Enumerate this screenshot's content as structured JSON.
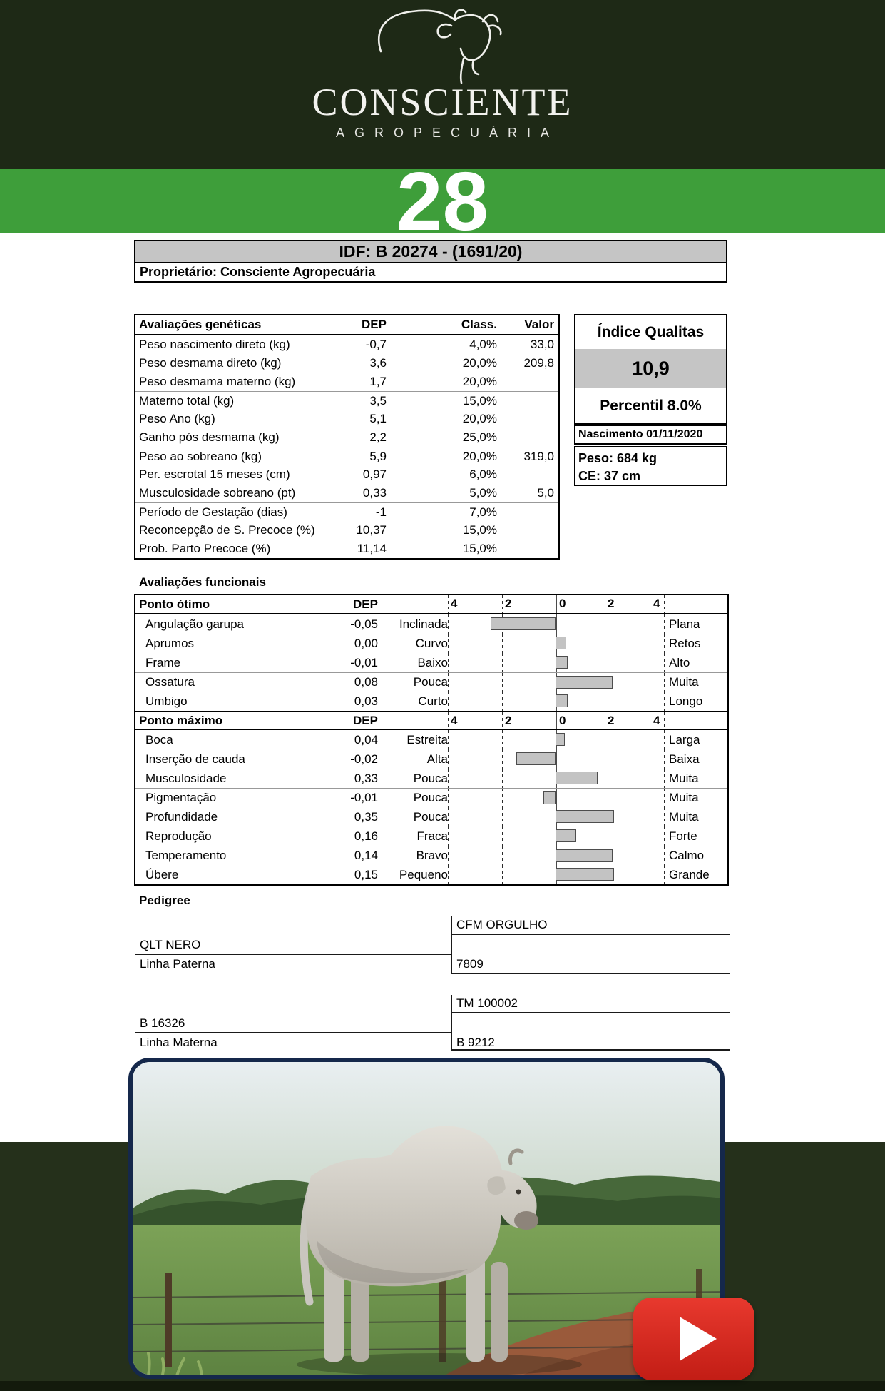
{
  "header": {
    "brand": "CONSCIENTE",
    "brand_subtitle": "AGROPECUÁRIA",
    "lot_number": "28"
  },
  "idf": {
    "title": "IDF: B 20274 - (1691/20)",
    "owner": "Proprietário: Consciente Agropecuária"
  },
  "genetic": {
    "headers": {
      "name": "Avaliações genéticas",
      "dep": "DEP",
      "class": "Class.",
      "valor": "Valor"
    },
    "rows": [
      {
        "name": "Peso nascimento direto (kg)",
        "dep": "-0,7",
        "class": "4,0%",
        "valor": "33,0"
      },
      {
        "name": "Peso desmama direto (kg)",
        "dep": "3,6",
        "class": "20,0%",
        "valor": "209,8"
      },
      {
        "name": "Peso desmama materno (kg)",
        "dep": "1,7",
        "class": "20,0%",
        "valor": ""
      },
      {
        "name": "Materno total (kg)",
        "dep": "3,5",
        "class": "15,0%",
        "valor": ""
      },
      {
        "name": "Peso Ano (kg)",
        "dep": "5,1",
        "class": "20,0%",
        "valor": ""
      },
      {
        "name": "Ganho pós desmama (kg)",
        "dep": "2,2",
        "class": "25,0%",
        "valor": ""
      },
      {
        "name": "Peso ao sobreano (kg)",
        "dep": "5,9",
        "class": "20,0%",
        "valor": "319,0"
      },
      {
        "name": "Per. escrotal 15 meses (cm)",
        "dep": "0,97",
        "class": "6,0%",
        "valor": ""
      },
      {
        "name": "Musculosidade sobreano (pt)",
        "dep": "0,33",
        "class": "5,0%",
        "valor": "5,0"
      },
      {
        "name": "Período de Gestação (dias)",
        "dep": "-1",
        "class": "7,0%",
        "valor": ""
      },
      {
        "name": "Reconcepção de S. Precoce (%)",
        "dep": "10,37",
        "class": "15,0%",
        "valor": ""
      },
      {
        "name": "Prob. Parto Precoce (%)",
        "dep": "11,14",
        "class": "15,0%",
        "valor": ""
      }
    ]
  },
  "qualitas": {
    "title": "Índice Qualitas",
    "value": "10,9",
    "percentile": "Percentil 8.0%",
    "birth": "Nascimento 01/11/2020",
    "weight": "Peso: 684 kg",
    "scrotal": "CE: 37 cm"
  },
  "functional": {
    "title": "Avaliações funcionais",
    "dep_label": "DEP",
    "scale": [
      "4",
      "2",
      "0",
      "2",
      "4"
    ],
    "groups": [
      {
        "header": "Ponto ótimo",
        "rows": [
          {
            "name": "Angulação garupa",
            "dep": "-0,05",
            "left": "Inclinada",
            "right": "Plana",
            "bar": -2.4
          },
          {
            "name": "Aprumos",
            "dep": "0,00",
            "left": "Curvo",
            "right": "Retos",
            "bar": 0.4
          },
          {
            "name": "Frame",
            "dep": "-0,01",
            "left": "Baixo",
            "right": "Alto",
            "bar": 0.45
          },
          {
            "name": "Ossatura",
            "dep": "0,08",
            "left": "Pouca",
            "right": "Muita",
            "bar": 2.1
          },
          {
            "name": "Umbigo",
            "dep": "0,03",
            "left": "Curto",
            "right": "Longo",
            "bar": 0.45
          }
        ]
      },
      {
        "header": "Ponto máximo",
        "rows": [
          {
            "name": "Boca",
            "dep": "0,04",
            "left": "Estreita",
            "right": "Larga",
            "bar": 0.35
          },
          {
            "name": "Inserção de cauda",
            "dep": "-0,02",
            "left": "Alta",
            "right": "Baixa",
            "bar": -1.45
          },
          {
            "name": "Musculosidade",
            "dep": "0,33",
            "left": "Pouca",
            "right": "Muita",
            "bar": 1.55
          },
          {
            "name": "Pigmentação",
            "dep": "-0,01",
            "left": "Pouca",
            "right": "Muita",
            "bar": -0.45
          },
          {
            "name": "Profundidade",
            "dep": "0,35",
            "left": "Pouca",
            "right": "Muita",
            "bar": 2.15
          },
          {
            "name": "Reprodução",
            "dep": "0,16",
            "left": "Fraca",
            "right": "Forte",
            "bar": 0.75
          },
          {
            "name": "Temperamento",
            "dep": "0,14",
            "left": "Bravo",
            "right": "Calmo",
            "bar": 2.1
          },
          {
            "name": "Úbere",
            "dep": "0,15",
            "left": "Pequeno",
            "right": "Grande",
            "bar": 2.15
          }
        ]
      }
    ]
  },
  "pedigree": {
    "title": "Pedigree",
    "paternal": {
      "parent": "QLT NERO",
      "line_label": "Linha Paterna",
      "grand_top": "CFM ORGULHO",
      "grand_bottom": "7809"
    },
    "maternal": {
      "parent": "B 16326",
      "line_label": "Linha Materna",
      "grand_top": "TM 100002",
      "grand_bottom": "B 9212"
    }
  },
  "media": {
    "play_icon_name": "youtube-play"
  },
  "colors": {
    "band_green": "#3e9e3a",
    "header_dark": "#1e2916",
    "accent_red": "#dd281e",
    "frame_navy": "#15284b"
  }
}
